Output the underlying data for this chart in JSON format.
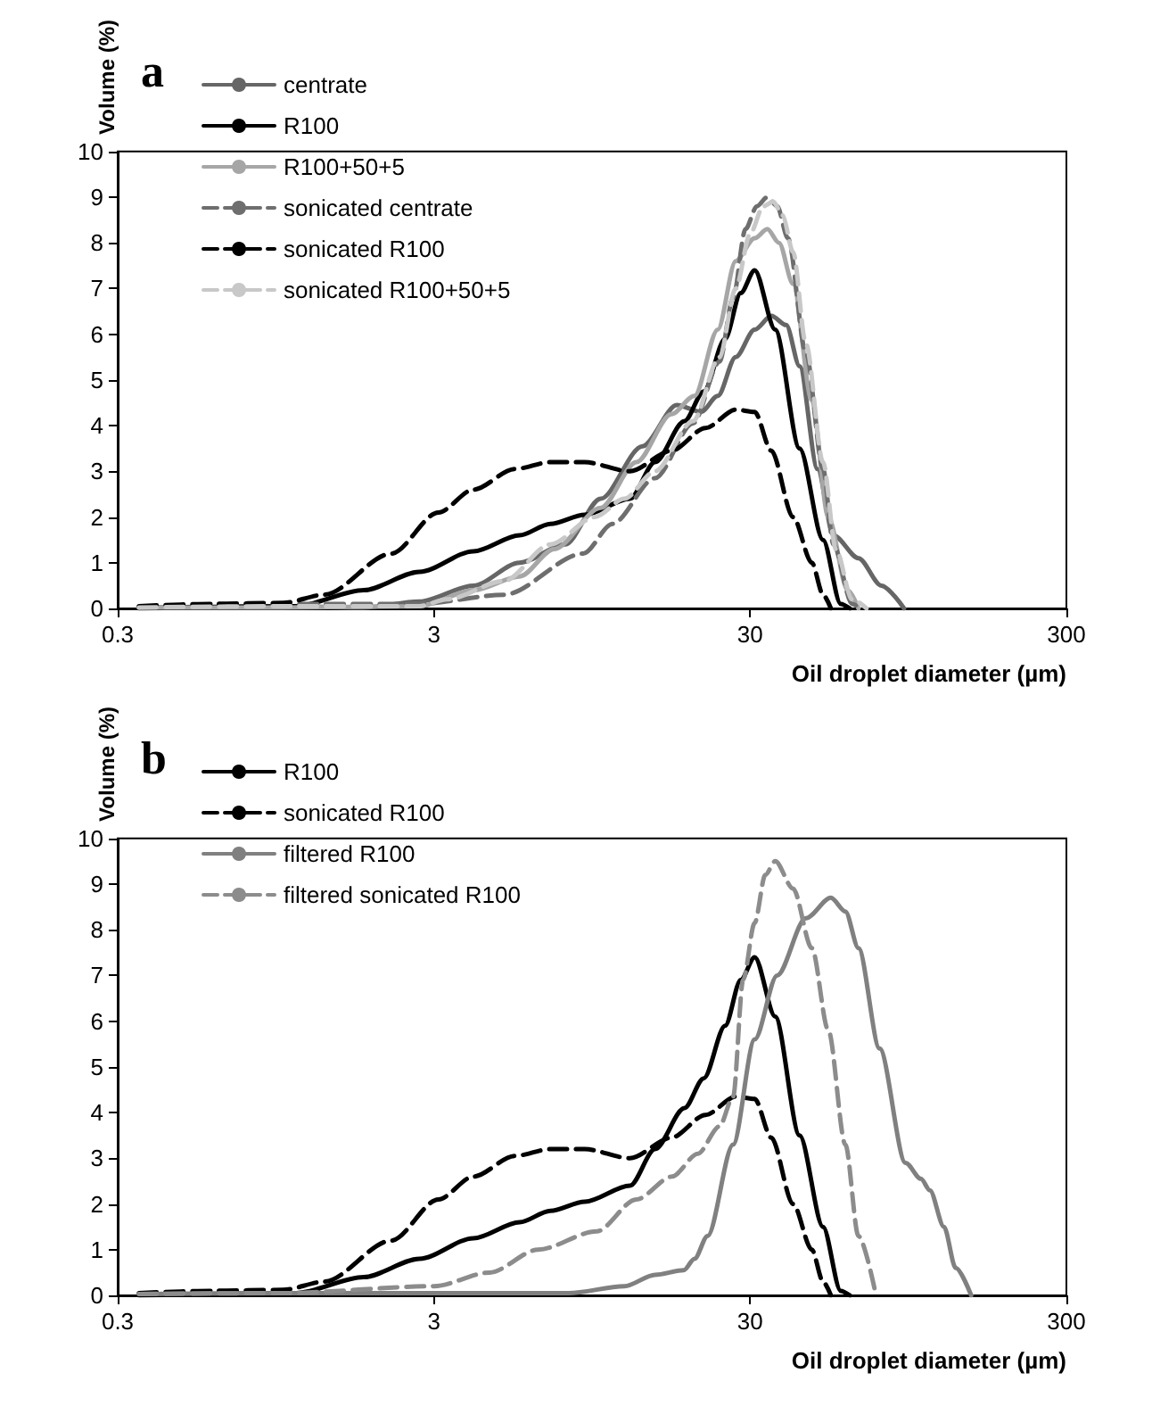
{
  "chart_data": [
    {
      "type": "line",
      "title": "a",
      "xlabel": "Oil droplet diameter (µm)",
      "ylabel": "Volume (%)",
      "log": "x",
      "xlim": [
        0.3,
        300
      ],
      "xticks": [
        0.3,
        3,
        30,
        300
      ],
      "ylim": [
        0,
        10
      ],
      "yticks": [
        0,
        1,
        2,
        3,
        4,
        5,
        6,
        7,
        8,
        9,
        10
      ],
      "grid": false,
      "legend": "top left",
      "marker": "none",
      "series": [
        {
          "name": "centrate",
          "color": "#666666",
          "line_style": "solid",
          "x": [
            0.35,
            1.0,
            1.8,
            2.7,
            4,
            5.6,
            7.8,
            10.1,
            13.7,
            17.6,
            21,
            23.7,
            27,
            31,
            35,
            39,
            43,
            49,
            55,
            66,
            78,
            92
          ],
          "values": [
            0.02,
            0.05,
            0.02,
            0.15,
            0.5,
            1.0,
            1.4,
            2.4,
            3.55,
            4.45,
            4.3,
            4.65,
            5.5,
            6.1,
            6.4,
            6.2,
            5.3,
            3.05,
            1.6,
            1.1,
            0.5,
            0
          ]
        },
        {
          "name": "R100",
          "color": "#000000",
          "line_style": "solid",
          "x": [
            0.35,
            1.1,
            1.8,
            2.7,
            4,
            5.6,
            7,
            9,
            12.5,
            15,
            18.6,
            21.4,
            25,
            28,
            31,
            36,
            43,
            51,
            58,
            62
          ],
          "values": [
            0,
            0.05,
            0.4,
            0.8,
            1.25,
            1.6,
            1.85,
            2.05,
            2.4,
            3.2,
            4.1,
            4.75,
            5.9,
            6.9,
            7.4,
            6.1,
            3.5,
            1.5,
            0.1,
            0
          ]
        },
        {
          "name": "R100+50+5",
          "color": "#a6a6a6",
          "line_style": "solid",
          "x": [
            0.35,
            1.0,
            2.7,
            4,
            5.6,
            7.2,
            10.1,
            13.1,
            16.9,
            20,
            23.7,
            27,
            31,
            34,
            37,
            41,
            47,
            53,
            61,
            66
          ],
          "values": [
            0.02,
            0.02,
            0.05,
            0.4,
            0.7,
            1.3,
            2.2,
            3.2,
            4.25,
            4.65,
            6.1,
            7.6,
            8.1,
            8.3,
            8.0,
            7.1,
            4.55,
            2.0,
            0.4,
            0
          ]
        },
        {
          "name": "sonicated centrate",
          "color": "#6e6e6e",
          "line_style": "dashed",
          "x": [
            0.35,
            1.0,
            2.7,
            5,
            8.9,
            11,
            15,
            19.8,
            24,
            26.5,
            29,
            31.5,
            34,
            36.5,
            39.5,
            45,
            51,
            55,
            63,
            67
          ],
          "values": [
            0.02,
            0.1,
            0.1,
            0.3,
            1.2,
            1.85,
            2.85,
            4.05,
            5.4,
            6.8,
            8.3,
            8.8,
            9.0,
            8.8,
            8.1,
            5.6,
            3.05,
            1.4,
            0.1,
            0
          ]
        },
        {
          "name": "sonicated R100",
          "color": "#000000",
          "line_style": "dashed",
          "x": [
            0.35,
            0.6,
            1.0,
            1.35,
            2.2,
            3.1,
            4,
            5.4,
            7,
            9,
            12.5,
            16.9,
            21.7,
            27,
            31,
            35,
            41,
            47,
            51,
            54
          ],
          "values": [
            0.05,
            0.1,
            0.12,
            0.3,
            1.2,
            2.1,
            2.6,
            3.05,
            3.2,
            3.2,
            3.0,
            3.45,
            3.95,
            4.35,
            4.3,
            3.45,
            2.0,
            1.0,
            0.3,
            0
          ]
        },
        {
          "name": "sonicated R100+50+5",
          "color": "#c8c8c8",
          "line_style": "dashed",
          "x": [
            0.35,
            1.0,
            2.7,
            3.3,
            5,
            7,
            9.7,
            12,
            15,
            19.8,
            24,
            27,
            30,
            33,
            35.5,
            38,
            41,
            45,
            51,
            56,
            63,
            70
          ],
          "values": [
            0.02,
            0.05,
            0.05,
            0.2,
            0.6,
            1.4,
            2.0,
            2.4,
            3.0,
            4.1,
            5.5,
            7.0,
            8.2,
            8.8,
            8.9,
            8.6,
            7.8,
            5.8,
            3.2,
            1.3,
            0.2,
            0
          ]
        }
      ]
    },
    {
      "type": "line",
      "title": "b",
      "xlabel": "Oil droplet diameter (µm)",
      "ylabel": "Volume (%)",
      "log": "x",
      "xlim": [
        0.3,
        300
      ],
      "xticks": [
        0.3,
        3,
        30,
        300
      ],
      "ylim": [
        0,
        10
      ],
      "yticks": [
        0,
        1,
        2,
        3,
        4,
        5,
        6,
        7,
        8,
        9,
        10
      ],
      "grid": false,
      "legend": "top left",
      "marker": "none",
      "series": [
        {
          "name": "R100",
          "color": "#000000",
          "line_style": "solid",
          "x": [
            0.35,
            1.1,
            1.8,
            2.7,
            4,
            5.6,
            7,
            9,
            12.5,
            15,
            18.6,
            21.4,
            25,
            28,
            31,
            36,
            43,
            51,
            58,
            62
          ],
          "values": [
            0,
            0.05,
            0.4,
            0.8,
            1.25,
            1.6,
            1.85,
            2.05,
            2.4,
            3.2,
            4.1,
            4.75,
            5.9,
            6.9,
            7.4,
            6.1,
            3.5,
            1.5,
            0.1,
            0
          ]
        },
        {
          "name": "sonicated R100",
          "color": "#000000",
          "line_style": "dashed",
          "x": [
            0.35,
            0.6,
            1.0,
            1.35,
            2.2,
            3.1,
            4,
            5.4,
            7,
            9,
            12.5,
            16.9,
            21.7,
            27,
            31,
            35,
            41,
            47,
            51,
            54
          ],
          "values": [
            0.05,
            0.1,
            0.12,
            0.3,
            1.2,
            2.1,
            2.6,
            3.05,
            3.2,
            3.2,
            3.0,
            3.45,
            3.95,
            4.35,
            4.3,
            3.45,
            2.0,
            1.0,
            0.3,
            0
          ]
        },
        {
          "name": "filtered R100",
          "color": "#808080",
          "line_style": "solid",
          "x": [
            0.35,
            1,
            3,
            8,
            12,
            15,
            18.5,
            20,
            22,
            26.5,
            31,
            36.5,
            45,
            54,
            60,
            66,
            77,
            93,
            104,
            111,
            123,
            134,
            150
          ],
          "values": [
            0.03,
            0.05,
            0.05,
            0.05,
            0.2,
            0.45,
            0.55,
            0.8,
            1.3,
            3.3,
            5.6,
            7.0,
            8.25,
            8.7,
            8.4,
            7.6,
            5.4,
            2.9,
            2.55,
            2.3,
            1.5,
            0.6,
            0
          ]
        },
        {
          "name": "filtered sonicated R100",
          "color": "#8c8c8c",
          "line_style": "dashed",
          "x": [
            0.35,
            1,
            3,
            4.5,
            6.4,
            9.8,
            13.1,
            17,
            20.5,
            24,
            26.5,
            28.5,
            31,
            33.5,
            36,
            41,
            47,
            53,
            60,
            66,
            75
          ],
          "values": [
            0.03,
            0.05,
            0.2,
            0.5,
            1.0,
            1.4,
            2.1,
            2.6,
            3.1,
            3.7,
            4.35,
            6.9,
            8.15,
            9.2,
            9.5,
            8.9,
            7.6,
            5.8,
            3.3,
            1.3,
            0
          ]
        }
      ]
    }
  ]
}
